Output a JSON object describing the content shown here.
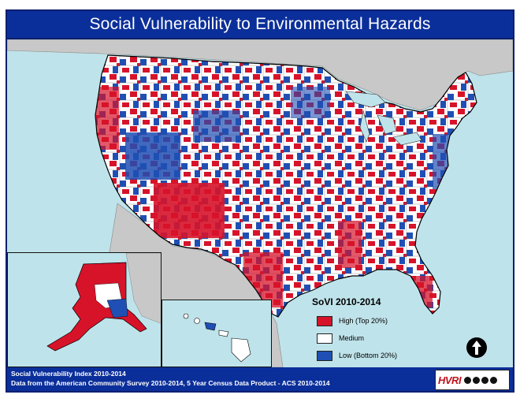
{
  "title": "Social Vulnerability to Environmental Hazards",
  "legend": {
    "title": "SoVI 2010-2014",
    "items": [
      {
        "label": "High (Top 20%)",
        "color": "#d7132a"
      },
      {
        "label": "Medium",
        "color": "#ffffff"
      },
      {
        "label": "Low (Bottom 20%)",
        "color": "#1f4fb4"
      }
    ]
  },
  "footer": {
    "line1": "Social Vulnerability Index 2010-2014",
    "line2": "Data from the American Community Survey 2010-2014, 5 Year Census Data Product - ACS 2010-2014"
  },
  "logo_text": "HVRI",
  "colors": {
    "header": "#0b2f9a",
    "water": "#bfe3ea",
    "land_other": "#c8c8c8",
    "high": "#d7132a",
    "medium": "#ffffff",
    "low": "#1f4fb4"
  },
  "icons": {
    "north_arrow": "north-arrow-icon",
    "logo": "hvri-logo"
  }
}
